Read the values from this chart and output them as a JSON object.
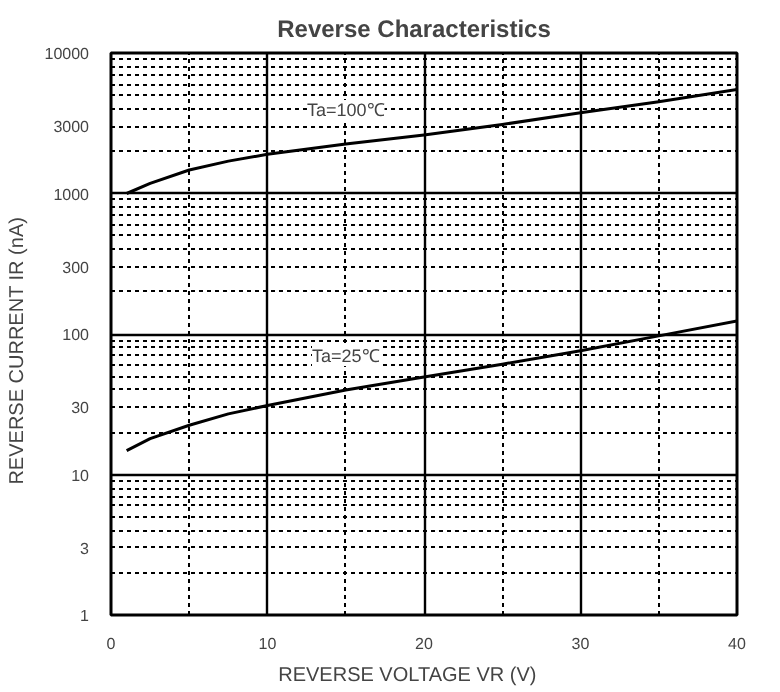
{
  "chart_data": {
    "type": "line",
    "title": "Reverse    Characteristics",
    "xlabel": "REVERSE VOLTAGE    VR    (V)",
    "ylabel": "REVERSE CURRENT    IR    (nA)",
    "log": "y",
    "grid": true,
    "marker": "none",
    "line_style": "solid",
    "xlim": [
      0,
      40
    ],
    "ylim": [
      1,
      10000
    ],
    "xticks": [
      0,
      {
        "value": 5,
        "label": null
      },
      10,
      {
        "value": 15,
        "label": null
      },
      20,
      {
        "value": 25,
        "label": null
      },
      30,
      {
        "value": 35,
        "label": null
      },
      40
    ],
    "yticks": [
      1,
      {
        "value": 2,
        "label": null
      },
      3,
      {
        "value": 4,
        "label": null
      },
      {
        "value": 5,
        "label": null
      },
      {
        "value": 6,
        "label": null
      },
      {
        "value": 7,
        "label": null
      },
      {
        "value": 8,
        "label": null
      },
      {
        "value": 9,
        "label": null
      },
      10,
      {
        "value": 20,
        "label": null
      },
      30,
      {
        "value": 40,
        "label": null
      },
      {
        "value": 50,
        "label": null
      },
      {
        "value": 60,
        "label": null
      },
      {
        "value": 70,
        "label": null
      },
      {
        "value": 80,
        "label": null
      },
      {
        "value": 90,
        "label": null
      },
      100,
      {
        "value": 200,
        "label": null
      },
      300,
      {
        "value": 400,
        "label": null
      },
      {
        "value": 500,
        "label": null
      },
      {
        "value": 600,
        "label": null
      },
      {
        "value": 700,
        "label": null
      },
      {
        "value": 800,
        "label": null
      },
      {
        "value": 900,
        "label": null
      },
      1000,
      {
        "value": 2000,
        "label": null
      },
      3000,
      {
        "value": 4000,
        "label": null
      },
      {
        "value": 5000,
        "label": null
      },
      {
        "value": 6000,
        "label": null
      },
      {
        "value": 7000,
        "label": null
      },
      {
        "value": 8000,
        "label": null
      },
      {
        "value": 9000,
        "label": null
      },
      10000
    ],
    "series": [
      {
        "color": "#000000",
        "x": [
          1,
          2.5,
          5,
          7.5,
          10,
          15,
          20,
          25,
          30,
          35,
          40
        ],
        "values": [
          1000,
          1180,
          1470,
          1700,
          1900,
          2250,
          2610,
          3100,
          3750,
          4500,
          5500
        ]
      },
      {
        "color": "#000000",
        "x": [
          1,
          2.5,
          5,
          7.5,
          10,
          15,
          20,
          25,
          30,
          35,
          40
        ],
        "values": [
          14.8,
          18,
          22.4,
          27,
          31,
          40,
          49.5,
          61,
          76,
          97,
          124
        ]
      }
    ],
    "annotations": [
      "Ta=100℃",
      "Ta=25℃"
    ]
  }
}
